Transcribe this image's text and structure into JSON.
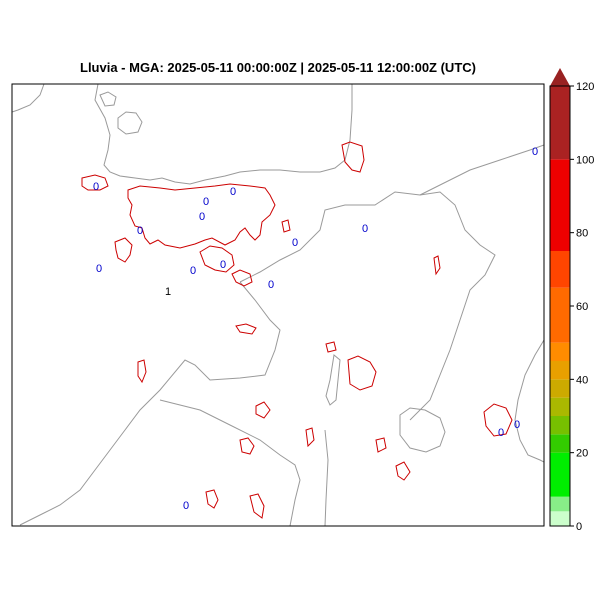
{
  "title": "Lluvia - MGA: 2025-05-11 00:00:00Z | 2025-05-11 12:00:00Z (UTC)",
  "colorbar": {
    "ticks": [
      "0",
      "20",
      "40",
      "60",
      "80",
      "100",
      "120"
    ],
    "range": [
      0,
      120
    ],
    "bands": [
      {
        "from": 0,
        "to": 4,
        "color": "#ccffcc"
      },
      {
        "from": 4,
        "to": 8,
        "color": "#88ee88"
      },
      {
        "from": 8,
        "to": 20,
        "color": "#00ee00"
      },
      {
        "from": 20,
        "to": 25,
        "color": "#33cc00"
      },
      {
        "from": 25,
        "to": 30,
        "color": "#77c000"
      },
      {
        "from": 30,
        "to": 35,
        "color": "#aab800"
      },
      {
        "from": 35,
        "to": 40,
        "color": "#ccaa00"
      },
      {
        "from": 40,
        "to": 45,
        "color": "#e8a000"
      },
      {
        "from": 45,
        "to": 50,
        "color": "#ff8c00"
      },
      {
        "from": 50,
        "to": 65,
        "color": "#ff6a00"
      },
      {
        "from": 65,
        "to": 75,
        "color": "#ff4500"
      },
      {
        "from": 75,
        "to": 100,
        "color": "#ee0000"
      },
      {
        "from": 100,
        "to": 120,
        "color": "#aa2222"
      }
    ],
    "overflow_color": "#992222"
  },
  "stations": [
    {
      "label": "0"
    },
    {
      "label": "0"
    },
    {
      "label": "0"
    },
    {
      "label": "0"
    },
    {
      "label": "0"
    },
    {
      "label": "0"
    },
    {
      "label": "0"
    },
    {
      "label": "0"
    },
    {
      "label": "0"
    },
    {
      "label": "0"
    },
    {
      "label": "0"
    },
    {
      "label": "0"
    },
    {
      "label": "1"
    },
    {
      "label": "0"
    },
    {
      "label": "0"
    },
    {
      "label": "0"
    }
  ],
  "colors": {
    "coastline": "#9a9a9a",
    "rain_contour": "#cc0000",
    "station_value": "#0000cc"
  }
}
